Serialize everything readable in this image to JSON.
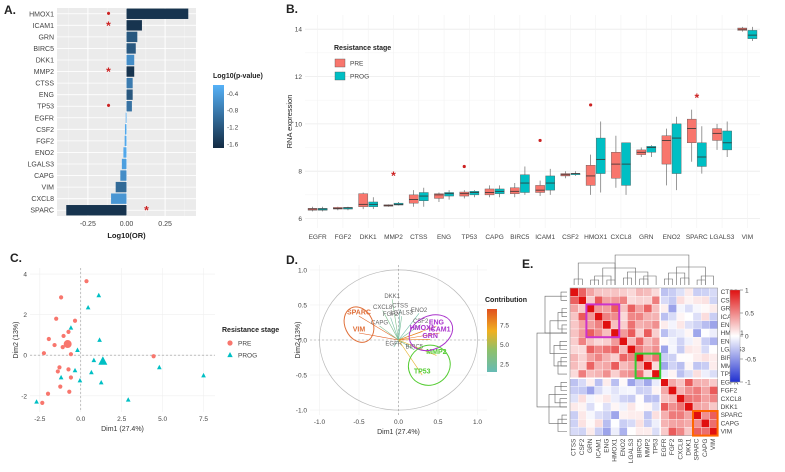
{
  "panel_labels": {
    "a": "A.",
    "b": "B.",
    "c": "C.",
    "d": "D.",
    "e": "E."
  },
  "colors": {
    "pre": "#F8766D",
    "prog": "#00BFC4",
    "star": "#CC2222",
    "dark": "#132B43",
    "light": "#56B1F7"
  },
  "chart_data": [
    {
      "id": "A",
      "type": "bar",
      "orientation": "horizontal",
      "categories": [
        "HMOX1",
        "ICAM1",
        "GRN",
        "BIRC5",
        "DKK1",
        "MMP2",
        "CTSS",
        "ENG",
        "TP53",
        "EGFR",
        "CSF2",
        "FGF2",
        "ENO2",
        "LGALS3",
        "CAPG",
        "VIM",
        "CXCL8",
        "SPARC"
      ],
      "values": [
        0.4,
        0.1,
        0.07,
        0.06,
        0.05,
        0.05,
        0.04,
        0.04,
        0.035,
        -0.005,
        -0.01,
        -0.012,
        -0.02,
        -0.03,
        -0.04,
        -0.07,
        -0.1,
        -0.39
      ],
      "log10_pvalue": [
        -1.6,
        -1.6,
        -1.2,
        -1.2,
        -0.6,
        -1.6,
        -0.8,
        -1.2,
        -0.9,
        -0.3,
        -0.3,
        -0.3,
        -0.3,
        -0.4,
        -0.6,
        -1.0,
        -0.5,
        -1.6
      ],
      "significance": [
        "•",
        "*",
        "",
        "",
        "",
        "*",
        "",
        "",
        "•",
        "",
        "",
        "",
        "",
        "",
        "",
        "",
        "",
        "*"
      ],
      "xlabel": "Log10(OR)",
      "xticks": [
        -0.25,
        0.0,
        0.25
      ],
      "xtick_labels": [
        "-0.25",
        "0.00",
        "0.25"
      ],
      "xlim": [
        -0.45,
        0.45
      ],
      "legend": {
        "title": "Log10(p-value)",
        "ticks": [
          -0.4,
          -0.8,
          -1.2,
          -1.6
        ],
        "tick_labels": [
          "-0.4",
          "-0.8",
          "-1.2",
          "-1.6"
        ],
        "range": [
          -1.7,
          -0.2
        ]
      }
    },
    {
      "id": "B",
      "type": "box",
      "categories": [
        "EGFR",
        "FGF2",
        "DKK1",
        "MMP2",
        "CTSS",
        "ENG",
        "TP53",
        "CAPG",
        "BIRC5",
        "ICAM1",
        "CSF2",
        "HMOX1",
        "CXCL8",
        "GRN",
        "ENO2",
        "SPARC",
        "LGALS3",
        "VIM"
      ],
      "ylabel": "RNA expression",
      "ylim": [
        5.6,
        14.6
      ],
      "yticks": [
        6,
        8,
        10,
        12,
        14
      ],
      "ytick_labels": [
        "6",
        "8",
        "10",
        "12",
        "14"
      ],
      "legend": {
        "title": "Resistance stage",
        "items": [
          "PRE",
          "PROG"
        ]
      },
      "series": [
        {
          "name": "PRE",
          "boxes": [
            [
              6.3,
              6.35,
              6.4,
              6.43,
              6.5
            ],
            [
              6.35,
              6.4,
              6.43,
              6.47,
              6.5
            ],
            [
              6.4,
              6.5,
              6.6,
              7.05,
              7.1
            ],
            [
              6.5,
              6.52,
              6.55,
              6.58,
              6.6
            ],
            [
              6.5,
              6.65,
              6.8,
              7.0,
              7.2
            ],
            [
              6.7,
              6.85,
              7.0,
              7.05,
              7.1
            ],
            [
              6.85,
              6.95,
              7.05,
              7.12,
              7.2
            ],
            [
              6.9,
              7.0,
              7.1,
              7.25,
              7.4
            ],
            [
              6.9,
              7.05,
              7.15,
              7.3,
              7.5
            ],
            [
              6.95,
              7.1,
              7.2,
              7.4,
              7.6
            ],
            [
              7.7,
              7.8,
              7.85,
              7.9,
              8.0
            ],
            [
              7.0,
              7.4,
              7.8,
              8.25,
              8.7
            ],
            [
              7.3,
              7.7,
              8.3,
              8.8,
              9.5
            ],
            [
              8.6,
              8.7,
              8.8,
              8.9,
              9.0
            ],
            [
              7.4,
              8.3,
              9.3,
              9.5,
              9.8
            ],
            [
              8.4,
              9.2,
              9.8,
              10.2,
              10.6
            ],
            [
              8.9,
              9.3,
              9.6,
              9.8,
              10.0
            ],
            [
              13.9,
              13.95,
              14.0,
              14.05,
              14.1
            ]
          ],
          "outliers": [
            [],
            [],
            [],
            [],
            [],
            [],
            [
              8.2
            ],
            [],
            [],
            [
              9.3
            ],
            [],
            [
              10.8
            ],
            [],
            [],
            [],
            [],
            [],
            []
          ]
        },
        {
          "name": "PROG",
          "boxes": [
            [
              6.3,
              6.35,
              6.4,
              6.43,
              6.5
            ],
            [
              6.35,
              6.4,
              6.45,
              6.47,
              6.5
            ],
            [
              6.4,
              6.5,
              6.6,
              6.7,
              6.9
            ],
            [
              6.55,
              6.57,
              6.6,
              6.65,
              6.7
            ],
            [
              6.5,
              6.75,
              6.95,
              7.1,
              7.3
            ],
            [
              6.8,
              6.95,
              7.05,
              7.1,
              7.2
            ],
            [
              6.9,
              7.0,
              7.1,
              7.15,
              7.2
            ],
            [
              6.9,
              7.05,
              7.15,
              7.25,
              7.4
            ],
            [
              7.0,
              7.1,
              7.5,
              7.85,
              8.2
            ],
            [
              7.0,
              7.2,
              7.5,
              7.8,
              8.1
            ],
            [
              7.8,
              7.85,
              7.9,
              7.9,
              8.0
            ],
            [
              7.1,
              7.9,
              8.5,
              9.4,
              10.1
            ],
            [
              7.0,
              7.4,
              8.3,
              9.2,
              9.2
            ],
            [
              8.6,
              8.8,
              9.0,
              9.05,
              9.1
            ],
            [
              7.2,
              7.9,
              9.4,
              10.0,
              10.3
            ],
            [
              7.9,
              8.2,
              8.6,
              9.2,
              9.9
            ],
            [
              8.6,
              8.9,
              9.2,
              9.7,
              10.1
            ],
            [
              13.5,
              13.6,
              13.75,
              13.95,
              14.1
            ]
          ],
          "outliers": [
            [],
            [],
            [],
            [],
            [],
            [],
            [],
            [],
            [],
            [],
            [],
            [],
            [],
            [],
            [],
            [],
            [],
            []
          ]
        }
      ],
      "significance": [
        {
          "category": "MMP2",
          "y": 7.8,
          "mark": "*"
        },
        {
          "category": "SPARC",
          "y": 11.1,
          "mark": "*"
        }
      ]
    },
    {
      "id": "C",
      "type": "scatter",
      "xlabel": "Dim1 (27.4%)",
      "ylabel": "Dim2 (13%)",
      "xlim": [
        -3.1,
        8.2
      ],
      "ylim": [
        -2.8,
        4.3
      ],
      "xticks": [
        -2.5,
        0.0,
        2.5,
        5.0,
        7.5
      ],
      "xtick_labels": [
        "-2.5",
        "0.0",
        "2.5",
        "5.0",
        "7.5"
      ],
      "yticks": [
        -2,
        0,
        2,
        4
      ],
      "ytick_labels": [
        "-2",
        "0",
        "2",
        "4"
      ],
      "legend": {
        "title": "Resistance stage",
        "items": [
          "PRE",
          "PROG"
        ]
      },
      "series": [
        {
          "name": "PRE",
          "points": [
            [
              0.35,
              3.65
            ],
            [
              -1.2,
              2.85
            ],
            [
              -1.5,
              1.8
            ],
            [
              -0.35,
              1.7
            ],
            [
              -0.75,
              1.15
            ],
            [
              -1.05,
              0.95
            ],
            [
              -1.95,
              0.8
            ],
            [
              -1.6,
              0.5
            ],
            [
              -2.25,
              0.1
            ],
            [
              -1.1,
              0.4
            ],
            [
              -0.6,
              0.05
            ],
            [
              -1.3,
              -0.6
            ],
            [
              -0.75,
              -0.7
            ],
            [
              -0.6,
              -1.1
            ],
            [
              -1.4,
              -0.8
            ],
            [
              -1.25,
              -1.55
            ],
            [
              -0.7,
              -1.8
            ],
            [
              -2.35,
              -2.35
            ],
            [
              4.45,
              -0.05
            ],
            [
              -2.0,
              -1.9
            ]
          ],
          "centroid": [
            -0.8,
            0.55
          ]
        },
        {
          "name": "PROG",
          "points": [
            [
              1.1,
              2.95
            ],
            [
              0.45,
              2.35
            ],
            [
              -0.6,
              1.35
            ],
            [
              1.15,
              0.75
            ],
            [
              -0.2,
              0.25
            ],
            [
              0.8,
              -0.25
            ],
            [
              -0.35,
              -0.75
            ],
            [
              0.65,
              -0.85
            ],
            [
              -0.05,
              -1.25
            ],
            [
              -1.2,
              -1.1
            ],
            [
              1.25,
              -1.35
            ],
            [
              -2.7,
              -2.3
            ],
            [
              2.9,
              -2.2
            ],
            [
              4.8,
              -0.6
            ],
            [
              7.5,
              -1.0
            ]
          ],
          "centroid": [
            1.35,
            -0.3
          ]
        }
      ]
    },
    {
      "id": "D",
      "type": "biplot",
      "xlabel": "Dim1 (27.4%)",
      "ylabel": "Dim2 (13%)",
      "xlim": [
        -1.12,
        1.12
      ],
      "ylim": [
        -1.07,
        1.07
      ],
      "xticks": [
        -1.0,
        -0.5,
        0.0,
        0.5,
        1.0
      ],
      "xtick_labels": [
        "-1.0",
        "-0.5",
        "0.0",
        "0.5",
        "1.0"
      ],
      "yticks": [
        -1.0,
        -0.5,
        0.0,
        0.5,
        1.0
      ],
      "ytick_labels": [
        "-1.0",
        "-0.5",
        "0.0",
        "0.5",
        "1.0"
      ],
      "legend": {
        "title": "Contribution",
        "ticks": [
          7.5,
          5.0,
          2.5
        ],
        "tick_labels": [
          "7.5",
          "5.0",
          "2.5"
        ],
        "range": [
          1.5,
          9.5
        ]
      },
      "variables": [
        {
          "name": "SPARC",
          "x": -0.5,
          "y": 0.34,
          "contrib": 9.0
        },
        {
          "name": "VIM",
          "x": -0.5,
          "y": 0.1,
          "contrib": 9.2
        },
        {
          "name": "CXCL8",
          "x": -0.2,
          "y": 0.42,
          "contrib": 3.0
        },
        {
          "name": "DKK1",
          "x": -0.08,
          "y": 0.58,
          "contrib": 3.0
        },
        {
          "name": "CTSS",
          "x": 0.02,
          "y": 0.44,
          "contrib": 2.0
        },
        {
          "name": "FGF2",
          "x": -0.1,
          "y": 0.32,
          "contrib": 2.2
        },
        {
          "name": "LGALS3",
          "x": 0.04,
          "y": 0.34,
          "contrib": 2.5
        },
        {
          "name": "CAPG",
          "x": -0.24,
          "y": 0.2,
          "contrib": 3.0
        },
        {
          "name": "ENO2",
          "x": 0.26,
          "y": 0.38,
          "contrib": 2.0
        },
        {
          "name": "CSF2",
          "x": 0.28,
          "y": 0.22,
          "contrib": 2.8
        },
        {
          "name": "ENG",
          "x": 0.48,
          "y": 0.2,
          "contrib": 8.0
        },
        {
          "name": "ICAM1",
          "x": 0.52,
          "y": 0.1,
          "contrib": 8.5
        },
        {
          "name": "HMOX1",
          "x": 0.3,
          "y": 0.12,
          "contrib": 8.0
        },
        {
          "name": "GRN",
          "x": 0.4,
          "y": 0.01,
          "contrib": 8.2
        },
        {
          "name": "EGFR",
          "x": -0.06,
          "y": -0.1,
          "contrib": 2.0
        },
        {
          "name": "BIRC5",
          "x": 0.2,
          "y": -0.14,
          "contrib": 2.8
        },
        {
          "name": "MMP2",
          "x": 0.48,
          "y": -0.22,
          "contrib": 6.5
        },
        {
          "name": "TP53",
          "x": 0.3,
          "y": -0.5,
          "contrib": 6.5
        }
      ],
      "ellipse_groups": [
        {
          "members": [
            "SPARC",
            "VIM"
          ],
          "color": "#E0703A"
        },
        {
          "members": [
            "HMOX1",
            "ICAM1",
            "ENG",
            "GRN"
          ],
          "color": "#AA33CC"
        },
        {
          "members": [
            "MMP2",
            "TP53"
          ],
          "color": "#55CC33"
        }
      ]
    },
    {
      "id": "E",
      "type": "heatmap",
      "rows": [
        "CTSS",
        "CSF2",
        "GRN",
        "ICAM1",
        "ENG",
        "HMOX1",
        "ENO2",
        "LGALS3",
        "BIRC5",
        "MMP2",
        "TP53",
        "EGFR",
        "FGF2",
        "CXCL8",
        "DKK1",
        "SPARC",
        "CAPG",
        "VIM"
      ],
      "columns": [
        "CTSS",
        "CSF2",
        "GRN",
        "ICAM1",
        "ENG",
        "HMOX1",
        "ENO2",
        "LGALS3",
        "BIRC5",
        "MMP2",
        "TP53",
        "EGFR",
        "FGF2",
        "CXCL8",
        "DKK1",
        "SPARC",
        "CAPG",
        "VIM"
      ],
      "group_blocks": [
        [
          0,
          10
        ],
        [
          11,
          17
        ]
      ],
      "highlight_boxes": [
        {
          "from": "GRN",
          "to": "HMOX1",
          "color": "#CC33CC"
        },
        {
          "from": "BIRC5",
          "to": "TP53",
          "color": "#33CC33"
        },
        {
          "from": "SPARC",
          "to": "VIM",
          "color": "#FF6600"
        }
      ],
      "legend": {
        "ticks": [
          1,
          0.5,
          0,
          -0.5,
          -1
        ],
        "tick_labels": [
          "1",
          "0.5",
          "0",
          "-0.5",
          "-1"
        ]
      }
    }
  ]
}
